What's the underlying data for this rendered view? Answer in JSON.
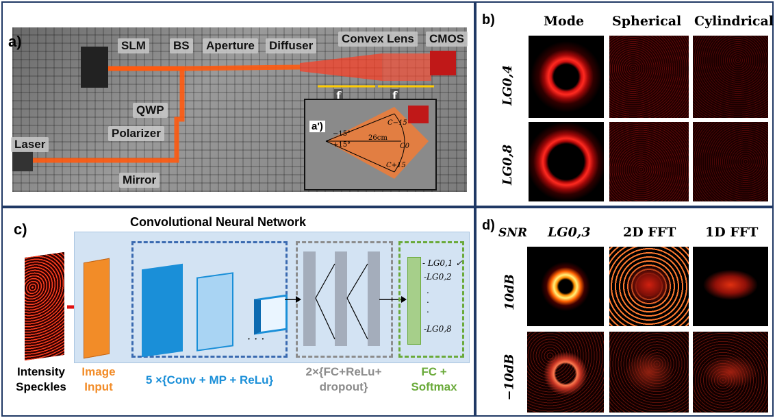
{
  "panel_a": {
    "label": "a)",
    "components": {
      "slm": "SLM",
      "bs": "BS",
      "aperture": "Aperture",
      "diffuser": "Diffuser",
      "convex_lens": "Convex Lens",
      "cmos": "CMOS",
      "qwp": "QWP",
      "polarizer": "Polarizer",
      "laser": "Laser",
      "mirror": "Mirror",
      "f1": "f",
      "f2": "f"
    },
    "inset": {
      "label": "a')",
      "angle_minus": "−15°",
      "angle_plus": "+15°",
      "distance": "26cm",
      "c_minus": "C−15",
      "c_zero": "C0",
      "c_plus": "C+15"
    }
  },
  "panel_b": {
    "label": "b)",
    "columns": [
      "Mode",
      "Spherical",
      "Cylindrical"
    ],
    "rows": [
      "LG0,4",
      "LG0,8"
    ]
  },
  "panel_c": {
    "label": "c)",
    "title": "Convolutional Neural Network",
    "input_caption_1": "Intensity",
    "input_caption_2": "Speckles",
    "stage_image_1": "Image",
    "stage_image_2": "Input",
    "stage_conv": "5 ×{Conv + MP + ReLu}",
    "stage_fc_1": "2×{FC+ReLu+",
    "stage_fc_2": "dropout}",
    "stage_out_1": "FC +",
    "stage_out_2": "Softmax",
    "ellipsis": "· · ·",
    "outputs": [
      "- LG0,1 ✓",
      "-LG0,2",
      "-LG0,8"
    ],
    "colors": {
      "orange": "#f28c28",
      "blue": "#1a8fd8",
      "gray": "#8c8c8c",
      "green": "#6aaa3a"
    }
  },
  "panel_d": {
    "label": "d)",
    "corner": "SNR",
    "columns": [
      "LG0,3",
      "2D FFT",
      "1D FFT"
    ],
    "rows": [
      "10dB",
      "−10dB"
    ]
  }
}
